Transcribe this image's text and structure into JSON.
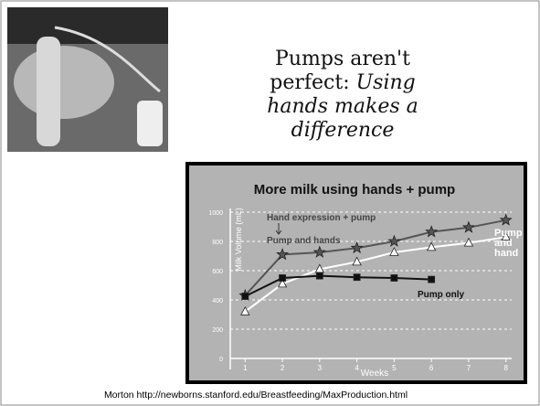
{
  "slide": {
    "title": {
      "lead": "Pumps aren't perfect:",
      "emphasis": "Using hands makes a difference"
    },
    "caption": "Morton http://newborns.stanford.edu/Breastfeeding/MaxProduction.html"
  },
  "chart_data": {
    "type": "line",
    "title": "More milk using hands + pump",
    "x_label": "Weeks",
    "y_label": "Milk Volume (mL)",
    "annotation": "Hand expression + pump",
    "x": [
      1,
      2,
      3,
      4,
      5,
      6,
      7,
      8
    ],
    "series": [
      {
        "name": "Pump and hands",
        "color": "#555555",
        "marker": "star",
        "values": [
          430,
          710,
          725,
          755,
          800,
          865,
          895,
          945
        ]
      },
      {
        "name": "Pump and hand",
        "color": "#ffffff",
        "marker": "triangle",
        "values": [
          320,
          510,
          610,
          660,
          725,
          760,
          790,
          830
        ]
      },
      {
        "name": "Pump only",
        "color": "#111111",
        "marker": "square",
        "values": [
          425,
          550,
          565,
          555,
          550,
          540,
          null,
          null
        ]
      }
    ],
    "xlim": [
      0.6,
      8.4
    ],
    "xticks": [
      1,
      2,
      3,
      4,
      5,
      6,
      7,
      8
    ],
    "ylim": [
      0,
      1000
    ],
    "yticks": [
      0,
      200,
      400,
      600,
      800,
      1000
    ],
    "grid": true
  }
}
